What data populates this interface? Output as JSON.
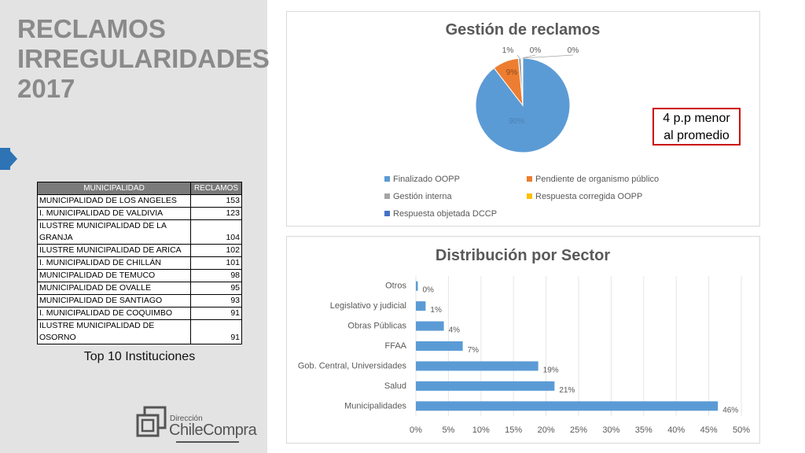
{
  "title_lines": [
    "RECLAMOS",
    "IRREGULARIDADES",
    "2017"
  ],
  "table": {
    "headers": [
      "MUNICIPALIDAD",
      "RECLAMOS"
    ],
    "rows": [
      {
        "name_lines": [
          "MUNICIPALIDAD DE LOS ANGELES"
        ],
        "value": "153"
      },
      {
        "name_lines": [
          "I. MUNICIPALIDAD DE VALDIVIA"
        ],
        "value": "123"
      },
      {
        "name_lines": [
          "ILUSTRE MUNICIPALIDAD DE LA",
          "GRANJA"
        ],
        "value": "104"
      },
      {
        "name_lines": [
          "ILUSTRE MUNICIPALIDAD DE ARICA"
        ],
        "value": "102"
      },
      {
        "name_lines": [
          "I. MUNICIPALIDAD DE CHILLÁN"
        ],
        "value": "101"
      },
      {
        "name_lines": [
          "MUNICIPALIDAD DE TEMUCO"
        ],
        "value": "98"
      },
      {
        "name_lines": [
          "MUNICIPALIDAD DE OVALLE"
        ],
        "value": "95"
      },
      {
        "name_lines": [
          "MUNICIPALIDAD DE SANTIAGO"
        ],
        "value": "93"
      },
      {
        "name_lines": [
          "I. MUNICIPALIDAD DE COQUIMBO"
        ],
        "value": "91"
      },
      {
        "name_lines": [
          "ILUSTRE MUNICIPALIDAD DE",
          "OSORNO"
        ],
        "value": "91"
      }
    ],
    "caption": "Top 10 Instituciones"
  },
  "logo": {
    "small": "Dirección",
    "big": "ChileCompra",
    "colors": [
      "#555555"
    ]
  },
  "callout": {
    "lines": [
      "4 p.p menor",
      "al promedio"
    ],
    "border_color": "#cc0000"
  },
  "chart_data": [
    {
      "type": "pie",
      "title": "Gestión de reclamos",
      "labels": [
        "Finalizado OOPP",
        "Pendiente de organismo público",
        "Gestión interna",
        "Respuesta corregida OOPP",
        "Respuesta objetada DCCP"
      ],
      "values": [
        90,
        9,
        1,
        0.3,
        0.2
      ],
      "data_labels": [
        "90%",
        "9%",
        "1%",
        "0%",
        "0%"
      ],
      "colors": [
        "#5b9bd5",
        "#ed7d31",
        "#a5a5a5",
        "#ffc000",
        "#4472c4"
      ],
      "legend": "bottom"
    },
    {
      "type": "bar",
      "orientation": "horizontal",
      "title": "Distribución por Sector",
      "categories": [
        "Otros",
        "Legislativo y judicial",
        "Obras Públicas",
        "FFAA",
        "Gob. Central, Universidades",
        "Salud",
        "Municipalidades"
      ],
      "values": [
        0.3,
        1.5,
        4.3,
        7.2,
        18.8,
        21.3,
        46.4
      ],
      "data_labels": [
        "0%",
        "1%",
        "4%",
        "7%",
        "19%",
        "21%",
        "46%"
      ],
      "xlim": [
        0,
        50
      ],
      "xticks": [
        "0%",
        "5%",
        "10%",
        "15%",
        "20%",
        "25%",
        "30%",
        "35%",
        "40%",
        "45%",
        "50%"
      ],
      "color": "#5b9bd5",
      "grid": true
    }
  ]
}
